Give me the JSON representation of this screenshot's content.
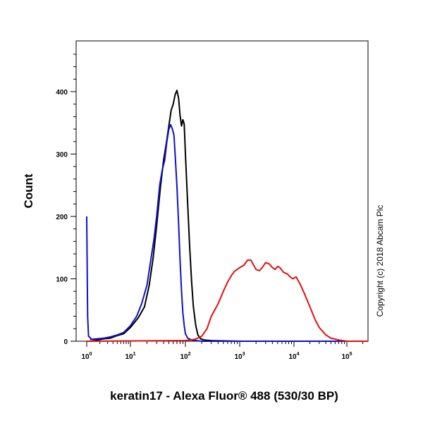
{
  "chart_data": {
    "type": "line",
    "title": "",
    "xlabel": "keratin17 - Alexa Fluor® 488 (530/30 BP)",
    "ylabel": "Count",
    "x_scale": "biexponential",
    "xlim": [
      0,
      250000
    ],
    "ylim": [
      0,
      460
    ],
    "y_ticks": [
      0,
      100,
      200,
      300,
      400
    ],
    "x_ticks": [
      {
        "value": 1,
        "base": "10",
        "exp": "0"
      },
      {
        "value": 10,
        "base": "10",
        "exp": "1"
      },
      {
        "value": 100,
        "base": "10",
        "exp": "2"
      },
      {
        "value": 1000,
        "base": "10",
        "exp": "3"
      },
      {
        "value": 10000,
        "base": "10",
        "exp": "4"
      },
      {
        "value": 100000,
        "base": "10",
        "exp": "5"
      }
    ],
    "series": [
      {
        "color": "#000000",
        "points": [
          [
            1.2,
            3
          ],
          [
            1.8,
            2
          ],
          [
            2.5,
            4
          ],
          [
            3.5,
            5
          ],
          [
            5,
            9
          ],
          [
            7,
            12
          ],
          [
            10,
            22
          ],
          [
            14,
            38
          ],
          [
            18,
            55
          ],
          [
            22,
            90
          ],
          [
            26,
            135
          ],
          [
            30,
            185
          ],
          [
            35,
            245
          ],
          [
            40,
            290
          ],
          [
            45,
            318
          ],
          [
            50,
            345
          ],
          [
            55,
            370
          ],
          [
            60,
            380
          ],
          [
            65,
            395
          ],
          [
            70,
            402
          ],
          [
            75,
            390
          ],
          [
            80,
            362
          ],
          [
            85,
            345
          ],
          [
            90,
            355
          ],
          [
            95,
            348
          ],
          [
            100,
            300
          ],
          [
            110,
            220
          ],
          [
            120,
            150
          ],
          [
            130,
            95
          ],
          [
            140,
            55
          ],
          [
            155,
            25
          ],
          [
            170,
            10
          ],
          [
            190,
            4
          ],
          [
            220,
            2
          ],
          [
            300,
            1
          ],
          [
            1000,
            0
          ],
          [
            100000,
            0
          ],
          [
            250000,
            0
          ]
        ]
      },
      {
        "color": "#1010c8",
        "points": [
          [
            1.0,
            200
          ],
          [
            1.05,
            40
          ],
          [
            1.1,
            8
          ],
          [
            1.3,
            3
          ],
          [
            1.8,
            4
          ],
          [
            2.5,
            5
          ],
          [
            3.5,
            7
          ],
          [
            5,
            10
          ],
          [
            7,
            14
          ],
          [
            10,
            25
          ],
          [
            13,
            40
          ],
          [
            16,
            60
          ],
          [
            20,
            90
          ],
          [
            23,
            125
          ],
          [
            27,
            165
          ],
          [
            30,
            200
          ],
          [
            34,
            250
          ],
          [
            38,
            275
          ],
          [
            42,
            290
          ],
          [
            46,
            320
          ],
          [
            50,
            340
          ],
          [
            54,
            347
          ],
          [
            58,
            340
          ],
          [
            62,
            330
          ],
          [
            66,
            290
          ],
          [
            70,
            250
          ],
          [
            75,
            190
          ],
          [
            80,
            130
          ],
          [
            85,
            80
          ],
          [
            90,
            45
          ],
          [
            95,
            25
          ],
          [
            100,
            12
          ],
          [
            110,
            5
          ],
          [
            130,
            2
          ],
          [
            160,
            1
          ],
          [
            200,
            0
          ],
          [
            1000,
            0
          ],
          [
            250000,
            0
          ]
        ]
      },
      {
        "color": "#e01010",
        "points": [
          [
            1,
            0
          ],
          [
            100,
            1
          ],
          [
            150,
            3
          ],
          [
            200,
            8
          ],
          [
            250,
            20
          ],
          [
            300,
            40
          ],
          [
            400,
            60
          ],
          [
            500,
            80
          ],
          [
            600,
            95
          ],
          [
            700,
            105
          ],
          [
            800,
            112
          ],
          [
            1000,
            118
          ],
          [
            1200,
            122
          ],
          [
            1400,
            130
          ],
          [
            1600,
            130
          ],
          [
            1800,
            122
          ],
          [
            2000,
            115
          ],
          [
            2300,
            113
          ],
          [
            2600,
            118
          ],
          [
            3000,
            126
          ],
          [
            3500,
            124
          ],
          [
            4000,
            118
          ],
          [
            4500,
            115
          ],
          [
            5000,
            120
          ],
          [
            5500,
            118
          ],
          [
            6500,
            110
          ],
          [
            7500,
            108
          ],
          [
            8500,
            103
          ],
          [
            9500,
            100
          ],
          [
            11000,
            103
          ],
          [
            13000,
            92
          ],
          [
            16000,
            75
          ],
          [
            20000,
            55
          ],
          [
            25000,
            35
          ],
          [
            30000,
            22
          ],
          [
            40000,
            10
          ],
          [
            50000,
            5
          ],
          [
            70000,
            2
          ],
          [
            100000,
            0
          ],
          [
            250000,
            0
          ]
        ]
      }
    ]
  },
  "copyright": "Copyright (c) 2018 Abcam Plc"
}
